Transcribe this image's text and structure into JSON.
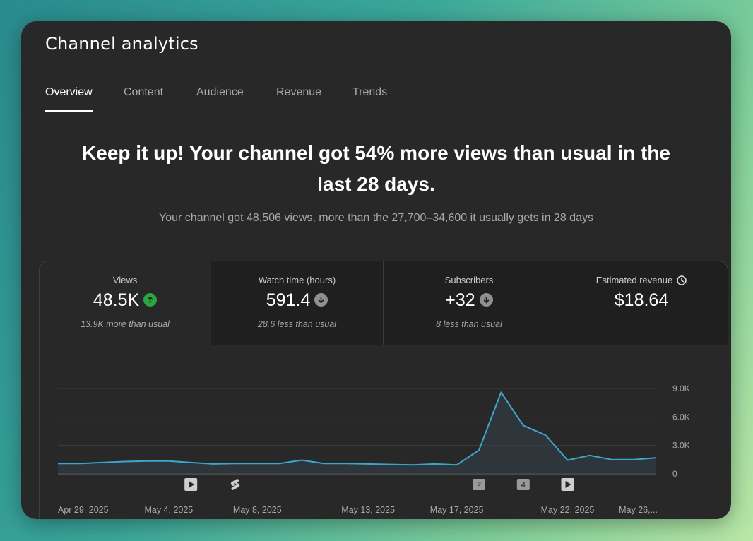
{
  "app": {
    "title": "Channel analytics"
  },
  "tabs": [
    {
      "label": "Overview",
      "active": true
    },
    {
      "label": "Content",
      "active": false
    },
    {
      "label": "Audience",
      "active": false
    },
    {
      "label": "Revenue",
      "active": false
    },
    {
      "label": "Trends",
      "active": false
    }
  ],
  "headline": {
    "line1": "Keep it up! Your channel got 54% more views than usual in the",
    "line2": "last 28 days."
  },
  "subline": "Your channel got 48,506 views, more than the 27,700–34,600 it usually gets in 28 days",
  "metrics": [
    {
      "label": "Views",
      "value": "48.5K",
      "trend": "up",
      "note": "13.9K more than usual"
    },
    {
      "label": "Watch time (hours)",
      "value": "591.4",
      "trend": "down",
      "note": "28.6 less than usual"
    },
    {
      "label": "Subscribers",
      "value": "+32",
      "trend": "down",
      "note": "8 less than usual"
    },
    {
      "label": "Estimated revenue",
      "value": "$18.64",
      "trend": "",
      "note": "",
      "icon": "clock-icon"
    }
  ],
  "colors": {
    "line": "#3ea6cc",
    "up": "#2ba640",
    "down": "#909090"
  },
  "chart_data": {
    "type": "area",
    "x": [
      "Apr 29",
      "Apr 30",
      "May 1",
      "May 2",
      "May 3",
      "May 4",
      "May 5",
      "May 6",
      "May 7",
      "May 8",
      "May 9",
      "May 10",
      "May 11",
      "May 12",
      "May 13",
      "May 14",
      "May 15",
      "May 16",
      "May 17",
      "May 18",
      "May 19",
      "May 20",
      "May 21",
      "May 22",
      "May 23",
      "May 24",
      "May 25",
      "May 26"
    ],
    "values": [
      1100,
      1100,
      1200,
      1300,
      1350,
      1350,
      1200,
      1050,
      1100,
      1100,
      1100,
      1450,
      1100,
      1100,
      1050,
      1000,
      950,
      1050,
      950,
      2500,
      8600,
      5100,
      4100,
      1450,
      1950,
      1500,
      1500,
      1700
    ],
    "y_ticks": [
      "9.0K",
      "6.0K",
      "3.0K",
      "0"
    ],
    "y_tick_values": [
      9000,
      6000,
      3000,
      0
    ],
    "ylim": [
      0,
      9000
    ],
    "x_tick_labels": [
      {
        "label": "Apr 29, 2025",
        "index": 0
      },
      {
        "label": "May 4, 2025",
        "index": 5
      },
      {
        "label": "May 8, 2025",
        "index": 9
      },
      {
        "label": "May 13, 2025",
        "index": 14
      },
      {
        "label": "May 17, 2025",
        "index": 18
      },
      {
        "label": "May 22, 2025",
        "index": 23
      },
      {
        "label": "May 26,...",
        "index": 27
      }
    ],
    "markers": [
      {
        "kind": "video",
        "index": 6,
        "icon": "play-icon"
      },
      {
        "kind": "short",
        "index": 8,
        "icon": "shorts-icon"
      },
      {
        "kind": "count",
        "index": 19,
        "label": "2"
      },
      {
        "kind": "count",
        "index": 21,
        "label": "4"
      },
      {
        "kind": "video",
        "index": 23,
        "icon": "play-icon"
      }
    ],
    "grid": true
  }
}
